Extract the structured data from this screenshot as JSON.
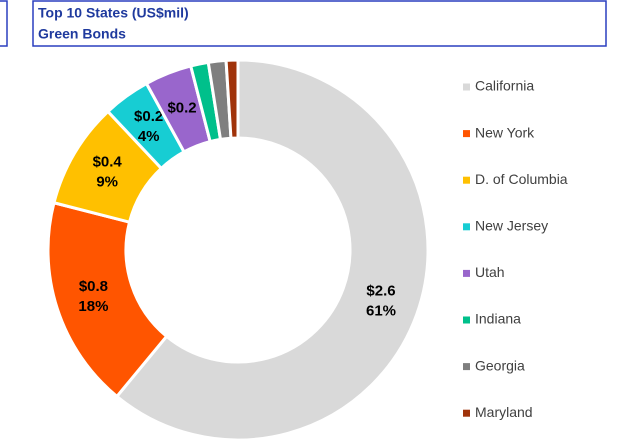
{
  "chart_data": {
    "type": "donut",
    "title": "Top 10 States (US$mil)",
    "subtitle": "Green Bonds",
    "categories": [
      "California",
      "New York",
      "D. of Columbia",
      "New Jersey",
      "Utah",
      "Indiana",
      "Georgia",
      "Maryland"
    ],
    "values": [
      61,
      18,
      9,
      4,
      4,
      1.5,
      1.5,
      1
    ],
    "value_labels": [
      "61%",
      "18%",
      "9%",
      "4%",
      null,
      null,
      null,
      null
    ],
    "amount_labels": [
      "$2.6",
      "$0.8",
      "$0.4",
      "$0.2",
      "$0.2",
      null,
      null,
      null
    ],
    "colors": [
      "#d9d9d9",
      "#ff5500",
      "#ffc000",
      "#17cdd3",
      "#9966cc",
      "#00c08b",
      "#7f7f7f",
      "#a0330a"
    ],
    "legend": "right"
  }
}
